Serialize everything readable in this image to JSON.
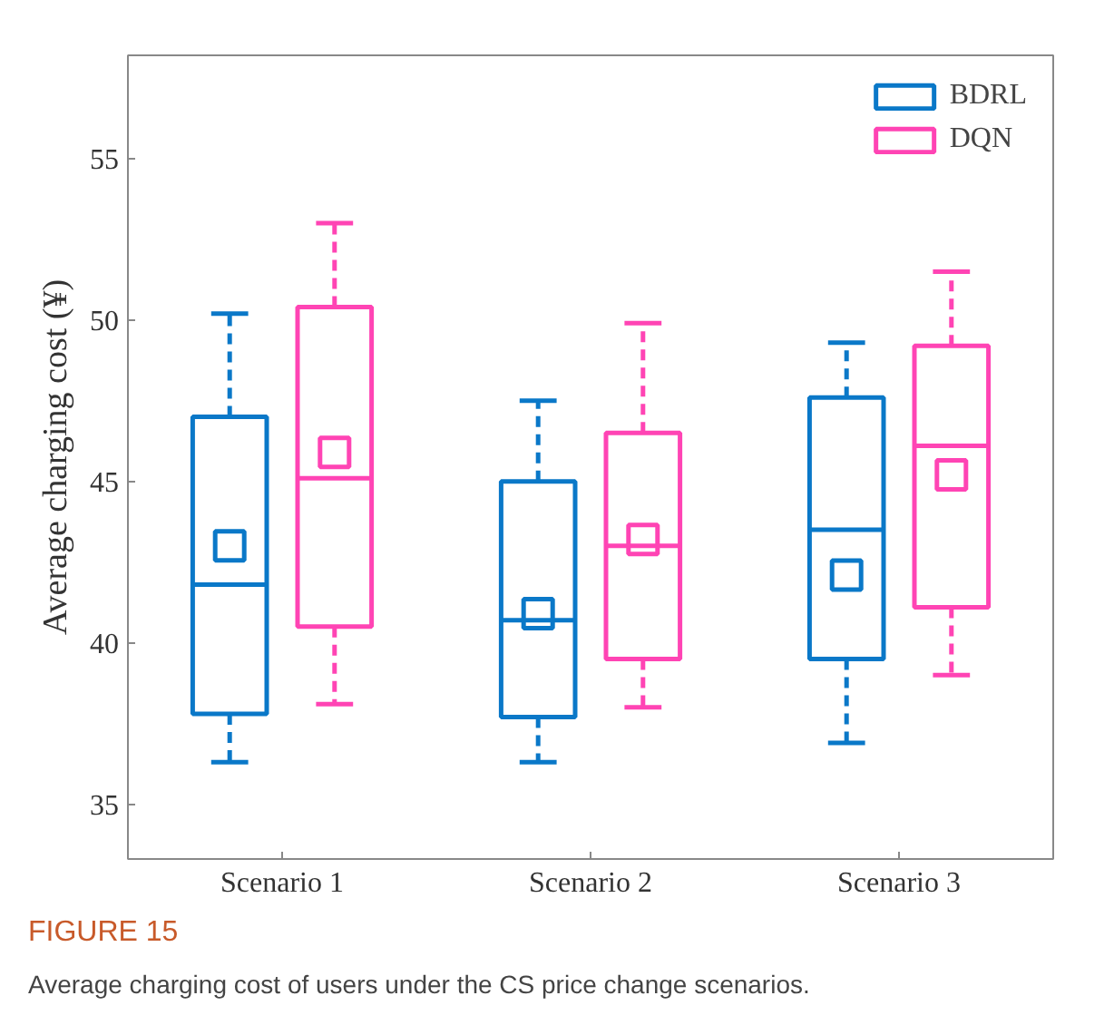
{
  "chart_data": {
    "type": "box",
    "ylabel": "Average charging cost (¥)",
    "categories": [
      "Scenario 1",
      "Scenario 2",
      "Scenario 3"
    ],
    "series": [
      {
        "name": "BDRL",
        "color": "#0a78c8",
        "boxes": [
          {
            "low": 36.3,
            "q1": 37.8,
            "median": 41.8,
            "q3": 47.0,
            "high": 50.2,
            "mean": 43.0
          },
          {
            "low": 36.3,
            "q1": 37.7,
            "median": 40.7,
            "q3": 45.0,
            "high": 47.5,
            "mean": 40.9
          },
          {
            "low": 36.9,
            "q1": 39.5,
            "median": 43.5,
            "q3": 47.6,
            "high": 49.3,
            "mean": 42.1
          }
        ]
      },
      {
        "name": "DQN",
        "color": "#ff44b4",
        "boxes": [
          {
            "low": 38.1,
            "q1": 40.5,
            "median": 45.1,
            "q3": 50.4,
            "high": 53.0,
            "mean": 45.9
          },
          {
            "low": 38.0,
            "q1": 39.5,
            "median": 43.0,
            "q3": 46.5,
            "high": 49.9,
            "mean": 43.2
          },
          {
            "low": 39.0,
            "q1": 41.1,
            "median": 46.1,
            "q3": 49.2,
            "high": 51.5,
            "mean": 45.2
          }
        ]
      }
    ],
    "ylim": [
      33.3,
      58.2
    ],
    "yticks": [
      35,
      40,
      45,
      50,
      55
    ],
    "grid": false,
    "legend": "top right",
    "marker": "square",
    "annotations": [
      "FIGURE 15",
      "Average charging cost of users under the CS price change scenarios."
    ]
  }
}
